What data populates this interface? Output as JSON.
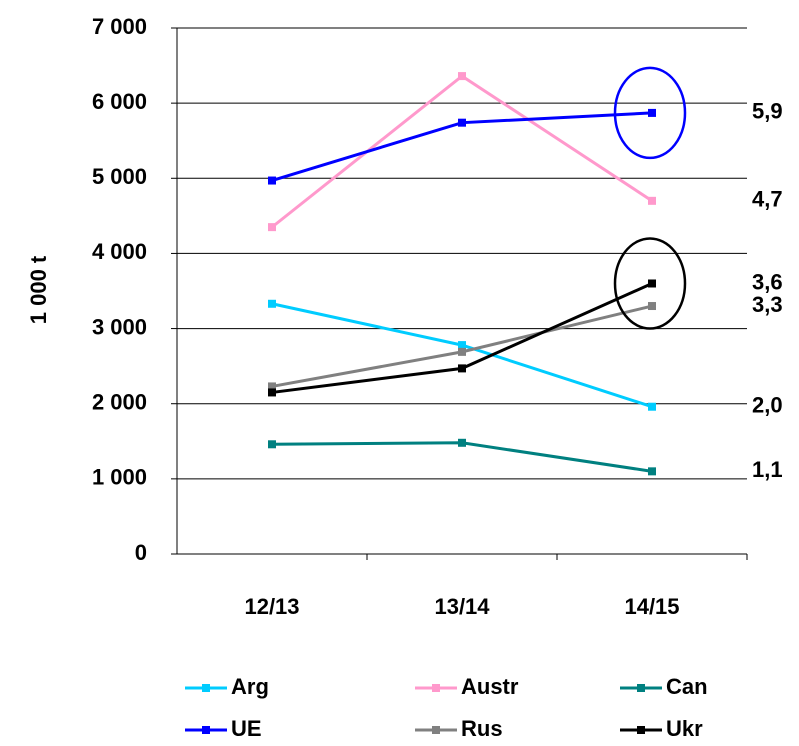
{
  "chart_data": {
    "type": "line",
    "y_label": "1 000 t",
    "categories": [
      "12/13",
      "13/14",
      "14/15"
    ],
    "series": [
      {
        "name": "Arg",
        "color": "#00ccff",
        "values": [
          3330,
          2780,
          1960
        ],
        "value_labels": [
          null,
          null,
          "2,0"
        ]
      },
      {
        "name": "Austr",
        "color": "#ff99cc",
        "values": [
          4350,
          6360,
          4700
        ],
        "value_labels": [
          null,
          null,
          "4,7"
        ]
      },
      {
        "name": "Can",
        "color": "#008080",
        "values": [
          1460,
          1480,
          1100
        ],
        "value_labels": [
          null,
          null,
          "1,1"
        ]
      },
      {
        "name": "UE",
        "color": "#0000ff",
        "values": [
          4970,
          5740,
          5870
        ],
        "value_labels": [
          null,
          null,
          "5,9"
        ],
        "highlight": true
      },
      {
        "name": "Rus",
        "color": "#808080",
        "values": [
          2230,
          2690,
          3300
        ],
        "value_labels": [
          null,
          null,
          "3,3"
        ]
      },
      {
        "name": "Ukr",
        "color": "#000000",
        "values": [
          2150,
          2470,
          3600
        ],
        "value_labels": [
          null,
          null,
          "3,6"
        ],
        "highlight": true
      }
    ],
    "ylim": [
      0,
      7000
    ],
    "yticks": [
      0,
      {
        "value": 1000,
        "label": "1 000"
      },
      {
        "value": 2000,
        "label": "2 000"
      },
      {
        "value": 3000,
        "label": "3 000"
      },
      {
        "value": 4000,
        "label": "4 000"
      },
      {
        "value": 5000,
        "label": "5 000"
      },
      {
        "value": 6000,
        "label": "6 000"
      },
      {
        "value": 7000,
        "label": "7 000"
      }
    ],
    "grid": true
  }
}
